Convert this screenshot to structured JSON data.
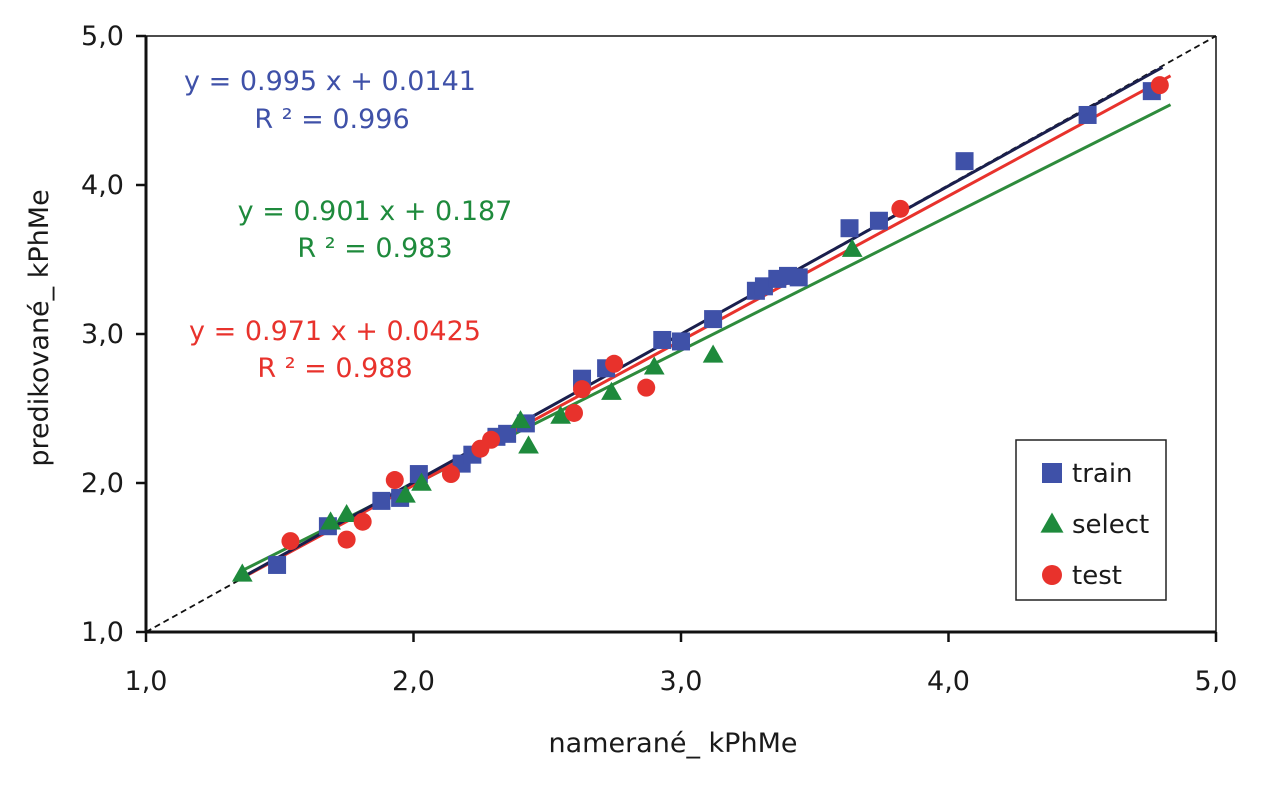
{
  "chart_data": {
    "type": "scatter",
    "xlabel": "namerané_ kPhMe",
    "ylabel": "predikované_ kPhMe",
    "xlim": [
      1.0,
      5.0
    ],
    "ylim": [
      1.0,
      5.0
    ],
    "x_ticks": [
      "1,0",
      "2,0",
      "3,0",
      "4,0",
      "5,0"
    ],
    "y_ticks": [
      "1,0",
      "2,0",
      "3,0",
      "4,0",
      "5,0"
    ],
    "grid": false,
    "legend_position": "bottom-right",
    "reference_line": {
      "style": "dashed",
      "color": "#111111",
      "from": [
        1.0,
        1.0
      ],
      "to": [
        5.0,
        5.0
      ]
    },
    "series": [
      {
        "name": "train",
        "marker": "square",
        "color": "#3f51a8",
        "equation": "y = 0.995 x + 0.0141",
        "r2": "R ² = 0.996",
        "fit": {
          "slope": 0.995,
          "intercept": 0.0141,
          "x_range": [
            1.35,
            4.8
          ],
          "color": "#1a1f4d"
        },
        "points": [
          [
            1.49,
            1.45
          ],
          [
            1.68,
            1.71
          ],
          [
            1.88,
            1.88
          ],
          [
            1.95,
            1.9
          ],
          [
            2.02,
            2.06
          ],
          [
            2.18,
            2.13
          ],
          [
            2.22,
            2.19
          ],
          [
            2.31,
            2.31
          ],
          [
            2.35,
            2.33
          ],
          [
            2.42,
            2.4
          ],
          [
            2.63,
            2.7
          ],
          [
            2.72,
            2.77
          ],
          [
            2.93,
            2.96
          ],
          [
            3.0,
            2.95
          ],
          [
            3.12,
            3.1
          ],
          [
            3.28,
            3.29
          ],
          [
            3.31,
            3.32
          ],
          [
            3.36,
            3.37
          ],
          [
            3.4,
            3.39
          ],
          [
            3.44,
            3.38
          ],
          [
            3.63,
            3.71
          ],
          [
            3.74,
            3.76
          ],
          [
            4.06,
            4.16
          ],
          [
            4.52,
            4.47
          ],
          [
            4.76,
            4.63
          ]
        ]
      },
      {
        "name": "select",
        "marker": "triangle",
        "color": "#1e8a3c",
        "equation": "y = 0.901 x + 0.187",
        "r2": "R ² = 0.983",
        "fit": {
          "slope": 0.901,
          "intercept": 0.187,
          "x_range": [
            1.35,
            4.83
          ],
          "color": "#2e8b3c"
        },
        "points": [
          [
            1.36,
            1.39
          ],
          [
            1.69,
            1.74
          ],
          [
            1.75,
            1.79
          ],
          [
            1.97,
            1.92
          ],
          [
            2.03,
            2.0
          ],
          [
            2.4,
            2.42
          ],
          [
            2.43,
            2.25
          ],
          [
            2.55,
            2.45
          ],
          [
            2.74,
            2.61
          ],
          [
            2.9,
            2.78
          ],
          [
            3.12,
            2.86
          ],
          [
            3.64,
            3.57
          ]
        ]
      },
      {
        "name": "test",
        "marker": "circle",
        "color": "#e8322c",
        "equation": "y = 0.971 x + 0.0425",
        "r2": "R ² = 0.988",
        "fit": {
          "slope": 0.971,
          "intercept": 0.0425,
          "x_range": [
            1.35,
            4.83
          ],
          "color": "#e8322c"
        },
        "points": [
          [
            1.54,
            1.61
          ],
          [
            1.75,
            1.62
          ],
          [
            1.81,
            1.74
          ],
          [
            1.93,
            2.02
          ],
          [
            2.14,
            2.06
          ],
          [
            2.25,
            2.23
          ],
          [
            2.29,
            2.29
          ],
          [
            2.6,
            2.47
          ],
          [
            2.63,
            2.63
          ],
          [
            2.75,
            2.8
          ],
          [
            2.87,
            2.64
          ],
          [
            3.82,
            3.84
          ],
          [
            4.79,
            4.67
          ]
        ]
      }
    ]
  }
}
